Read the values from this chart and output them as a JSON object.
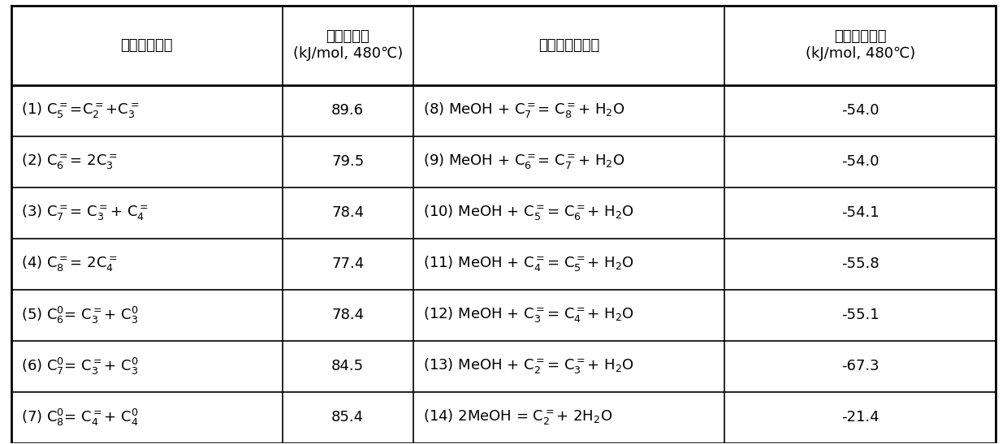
{
  "col1_header": "烃裂类解反应",
  "col2_header": "裂解反应焓\n(kJ/mol, 480℃)",
  "col3_header": "甲醇参与的反应",
  "col4_header": "甲基化反应焓\n(kJ/mol, 480℃)",
  "rows": [
    {
      "col1": "(1) C$_5^=$=C$_2^=$+C$_3^=$",
      "col2": "89.6",
      "col3": "(8) MeOH + C$_7^=$= C$_8^=$+ H$_2$O",
      "col4": "-54.0"
    },
    {
      "col1": "(2) C$_6^=$= 2C$_3^=$",
      "col2": "79.5",
      "col3": "(9) MeOH + C$_6^=$= C$_7^=$+ H$_2$O",
      "col4": "-54.0"
    },
    {
      "col1": "(3) C$_7^=$= C$_3^=$+ C$_4^=$",
      "col2": "78.4",
      "col3": "(10) MeOH + C$_5^=$= C$_6^=$+ H$_2$O",
      "col4": "-54.1"
    },
    {
      "col1": "(4) C$_8^=$= 2C$_4^=$",
      "col2": "77.4",
      "col3": "(11) MeOH + C$_4^=$= C$_5^=$+ H$_2$O",
      "col4": "-55.8"
    },
    {
      "col1": "(5) C$_6^0$= C$_3^=$+ C$_3^0$",
      "col2": "78.4",
      "col3": "(12) MeOH + C$_3^=$= C$_4^=$+ H$_2$O",
      "col4": "-55.1"
    },
    {
      "col1": "(6) C$_7^0$= C$_3^=$+ C$_3^0$",
      "col2": "84.5",
      "col3": "(13) MeOH + C$_2^=$= C$_3^=$+ H$_2$O",
      "col4": "-67.3"
    },
    {
      "col1": "(7) C$_8^0$= C$_4^=$+ C$_4^0$",
      "col2": "85.4",
      "col3": "(14) 2MeOH = C$_2^=$+ 2H$_2$O",
      "col4": "-21.4"
    }
  ],
  "bg_color": "white",
  "text_color": "black",
  "line_color": "black",
  "font_size": 13,
  "header_font_size": 13
}
